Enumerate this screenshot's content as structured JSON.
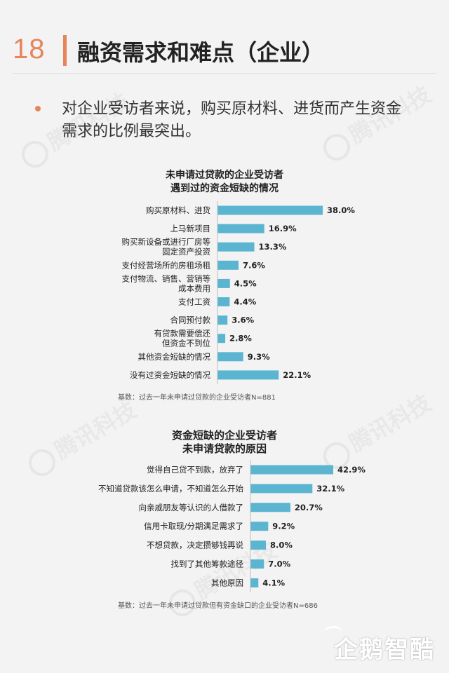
{
  "header": {
    "page_number": "18",
    "title": "融资需求和难点（企业）"
  },
  "bullet": {
    "text": "对企业受访者来说，购买原材料、进货而产生资金需求的比例最突出。"
  },
  "watermark": {
    "text": "腾讯科技"
  },
  "footer": {
    "logo_text": "企鹅智酷"
  },
  "colors": {
    "accent": "#e8845a",
    "bar": "#5bb5d0"
  },
  "chart_data": [
    {
      "type": "bar",
      "orientation": "horizontal",
      "title_lines": [
        "未申请过贷款的企业受访者",
        "遇到过的资金短缺的情况"
      ],
      "categories": [
        [
          "购买原材料、进货"
        ],
        [
          "上马新项目"
        ],
        [
          "购买新设备或进行厂房等",
          "固定资产投资"
        ],
        [
          "支付经营场所的房租场租"
        ],
        [
          "支付物流、销售、营销等",
          "成本费用"
        ],
        [
          "支付工资"
        ],
        [
          "合同预付款"
        ],
        [
          "有贷款需要偿还",
          "但资金不到位"
        ],
        [
          "其他资金短缺的情况"
        ],
        [
          "没有过资金短缺的情况"
        ]
      ],
      "values": [
        38.0,
        16.9,
        13.3,
        7.6,
        4.5,
        4.4,
        3.6,
        2.8,
        9.3,
        22.1
      ],
      "value_labels": [
        "38.0%",
        "16.9%",
        "13.3%",
        "7.6%",
        "4.5%",
        "4.4%",
        "3.6%",
        "2.8%",
        "9.3%",
        "22.1%"
      ],
      "note": "基数：过去一年未申请过贷款的企业受访者N=881"
    },
    {
      "type": "bar",
      "orientation": "horizontal",
      "title_lines": [
        "资金短缺的企业受访者",
        "未申请贷款的原因"
      ],
      "categories": [
        [
          "觉得自己贷不到款，放弃了"
        ],
        [
          "不知道贷款该怎么申请，不知道怎么开始"
        ],
        [
          "向亲戚朋友等认识的人借款了"
        ],
        [
          "信用卡取现/分期满足需求了"
        ],
        [
          "不想贷款，决定攒够钱再说"
        ],
        [
          "找到了其他筹款途径"
        ],
        [
          "其他原因"
        ]
      ],
      "values": [
        42.9,
        32.1,
        20.7,
        9.2,
        8.0,
        7.0,
        4.1
      ],
      "value_labels": [
        "42.9%",
        "32.1%",
        "20.7%",
        "9.2%",
        "8.0%",
        "7.0%",
        "4.1%"
      ],
      "note": "基数：过去一年未申请过贷款但有资金缺口的企业受访者N=686"
    }
  ]
}
